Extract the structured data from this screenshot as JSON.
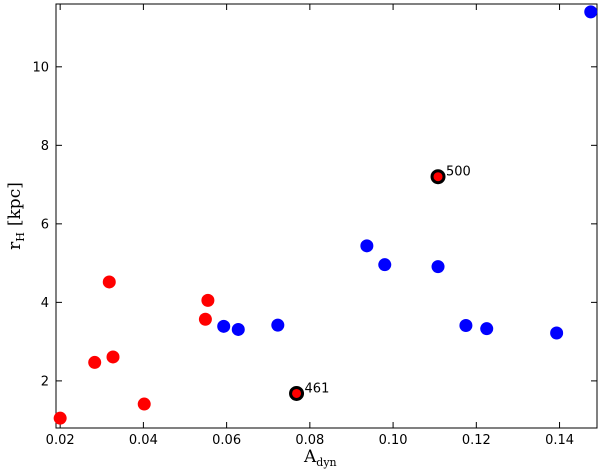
{
  "chart_data": {
    "type": "scatter",
    "xlim": [
      0.019,
      0.149
    ],
    "ylim": [
      0.8,
      11.6
    ],
    "x_ticks": [
      "0.02",
      "0.04",
      "0.06",
      "0.08",
      "0.10",
      "0.12",
      "0.14"
    ],
    "y_ticks": [
      "2",
      "4",
      "6",
      "8",
      "10"
    ],
    "x_tick_values": [
      0.02,
      0.04,
      0.06,
      0.08,
      0.1,
      0.12,
      0.14
    ],
    "y_tick_values": [
      2,
      4,
      6,
      8,
      10
    ],
    "xlabel": {
      "main": "A",
      "sub": "dyn"
    },
    "ylabel": {
      "main": "r",
      "sub": "H",
      "unit": "[kpc]"
    },
    "grid": false,
    "series": [
      {
        "color": "#ff0000",
        "points": [
          {
            "x": 0.02,
            "y": 1.05
          },
          {
            "x": 0.0283,
            "y": 2.47
          },
          {
            "x": 0.0318,
            "y": 4.52
          },
          {
            "x": 0.0327,
            "y": 2.61
          },
          {
            "x": 0.0402,
            "y": 1.41
          },
          {
            "x": 0.0549,
            "y": 3.57
          },
          {
            "x": 0.0555,
            "y": 4.05
          }
        ]
      },
      {
        "color": "#0000ff",
        "points": [
          {
            "x": 0.0593,
            "y": 3.39
          },
          {
            "x": 0.0628,
            "y": 3.31
          },
          {
            "x": 0.0723,
            "y": 3.42
          },
          {
            "x": 0.0937,
            "y": 5.44
          },
          {
            "x": 0.098,
            "y": 4.96
          },
          {
            "x": 0.1108,
            "y": 4.91
          },
          {
            "x": 0.1175,
            "y": 3.41
          },
          {
            "x": 0.1225,
            "y": 3.33
          },
          {
            "x": 0.1393,
            "y": 3.22
          },
          {
            "x": 0.1475,
            "y": 11.4
          }
        ]
      }
    ],
    "annotations": [
      {
        "label": "500",
        "x": 0.1108,
        "y": 7.2,
        "marker_color": "#ff0000",
        "edge_color": "#000000"
      },
      {
        "label": "461",
        "x": 0.0768,
        "y": 1.68,
        "marker_color": "#ff0000",
        "edge_color": "#000000"
      }
    ]
  }
}
